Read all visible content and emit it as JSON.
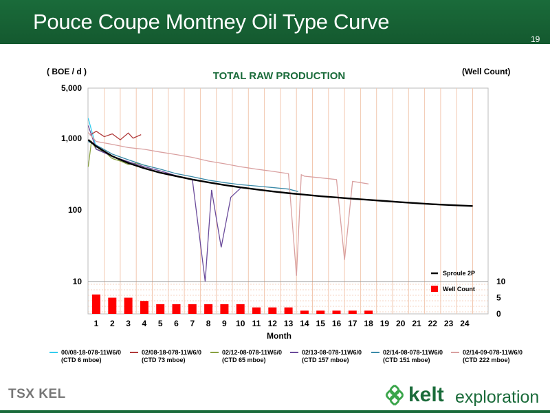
{
  "slide": {
    "title": "Pouce Coupe Montney Oil Type Curve",
    "page_number": "19",
    "logos": {
      "tsx": "TSX KEL",
      "company_name": "kelt",
      "company_suffix": "exploration"
    },
    "colors": {
      "header_green": "#1a6b3a",
      "title_green": "#1a6b3a"
    }
  },
  "chart_data": {
    "type": "line",
    "title": "TOTAL RAW PRODUCTION",
    "ylabel": "( BOE / d )",
    "y2label": "(Well Count)",
    "xlabel": "Month",
    "ylim": [
      10,
      5000
    ],
    "yscale": "log",
    "y_ticks": [
      "5,000",
      "1,000",
      "100",
      "10"
    ],
    "y_tick_values": [
      5000,
      1000,
      100,
      10
    ],
    "y2lim": [
      0,
      10
    ],
    "y2_ticks": [
      "10",
      "5",
      "0"
    ],
    "y2_tick_values": [
      10,
      5,
      0
    ],
    "x_ticks": [
      "1",
      "2",
      "3",
      "4",
      "5",
      "6",
      "7",
      "8",
      "9",
      "10",
      "11",
      "12",
      "13",
      "14",
      "15",
      "16",
      "17",
      "18",
      "19",
      "20",
      "21",
      "22",
      "23",
      "24"
    ],
    "grid": "vertical month lines (pink)",
    "type_curve": {
      "name": "Sproule 2P",
      "color": "#000000",
      "x": [
        0.5,
        1,
        2,
        3,
        4,
        5,
        6,
        7,
        8,
        9,
        10,
        11,
        12,
        13,
        14,
        15,
        16,
        17,
        18,
        19,
        20,
        21,
        22,
        23,
        24.5
      ],
      "values": [
        950,
        770,
        560,
        450,
        380,
        330,
        295,
        265,
        242,
        222,
        206,
        193,
        181,
        171,
        163,
        155,
        149,
        143,
        138,
        133,
        128,
        124,
        120,
        117,
        113
      ]
    },
    "well_count": {
      "name": "Well Count",
      "color": "#ff0000",
      "categories": [
        "1",
        "2",
        "3",
        "4",
        "5",
        "6",
        "7",
        "8",
        "9",
        "10",
        "11",
        "12",
        "13",
        "14",
        "15",
        "16",
        "17",
        "18",
        "19",
        "20",
        "21",
        "22",
        "23",
        "24"
      ],
      "values": [
        6,
        5,
        5,
        4,
        3,
        3,
        3,
        3,
        3,
        3,
        2,
        2,
        2,
        1,
        1,
        1,
        1,
        1,
        0,
        0,
        0,
        0,
        0,
        0
      ]
    },
    "series": [
      {
        "name": "00/08-18-078-11W6/0",
        "sub": "(CTD 6 mboe)",
        "color": "#33ccee",
        "x": [
          0.5,
          0.7,
          0.9,
          1.0
        ],
        "values": [
          1900,
          1300,
          900,
          700
        ]
      },
      {
        "name": "02/08-18-078-11W6/0",
        "sub": "(CTD 73 mboe)",
        "color": "#b03a3a",
        "x": [
          0.6,
          1.0,
          1.5,
          2.0,
          2.5,
          3.0,
          3.3,
          3.8
        ],
        "values": [
          1100,
          1250,
          1050,
          1150,
          950,
          1180,
          1000,
          1120
        ]
      },
      {
        "name": "02/12-08-078-11W6/0",
        "sub": "(CTD 65 mboe)",
        "color": "#88a040",
        "x": [
          0.5,
          0.7,
          1.0,
          1.5,
          2.0,
          2.5,
          3.0,
          3.5,
          4.0,
          4.4
        ],
        "values": [
          400,
          900,
          700,
          650,
          520,
          480,
          430,
          450,
          420,
          400
        ]
      },
      {
        "name": "02/13-08-078-11W6/0",
        "sub": "(CTD 157 mboe)",
        "color": "#6a4a9a",
        "x": [
          0.5,
          1,
          2,
          3,
          4,
          5,
          6,
          7,
          7.8,
          8.2,
          8.8,
          9.4,
          10.0
        ],
        "values": [
          1500,
          700,
          560,
          470,
          400,
          350,
          300,
          265,
          10,
          190,
          30,
          150,
          200
        ]
      },
      {
        "name": "02/14-08-078-11W6/0",
        "sub": "(CTD 151 mboe)",
        "color": "#3a8aa8",
        "x": [
          0.5,
          1,
          2,
          3,
          4,
          5,
          6,
          7,
          8,
          9,
          10,
          11,
          12,
          13,
          13.6
        ],
        "values": [
          900,
          800,
          600,
          500,
          420,
          370,
          320,
          290,
          260,
          240,
          225,
          215,
          205,
          195,
          180
        ]
      },
      {
        "name": "02/14-09-078-11W6/0",
        "sub": "(CTD 222 mboe)",
        "color": "#d9a0a0",
        "x": [
          0.5,
          1,
          2,
          3,
          4,
          5,
          6,
          7,
          8,
          9,
          10,
          11,
          12,
          13,
          13.5,
          13.8,
          14,
          15,
          16,
          16.5,
          17,
          17.5,
          18
        ],
        "values": [
          1200,
          900,
          820,
          740,
          700,
          640,
          590,
          540,
          480,
          440,
          400,
          370,
          345,
          320,
          12,
          310,
          295,
          280,
          265,
          20,
          250,
          240,
          230
        ]
      }
    ],
    "legend": [
      {
        "name": "Sproule 2P",
        "kind": "line",
        "color": "#000000"
      },
      {
        "name": "Well Count",
        "kind": "bar",
        "color": "#ff0000"
      }
    ]
  }
}
